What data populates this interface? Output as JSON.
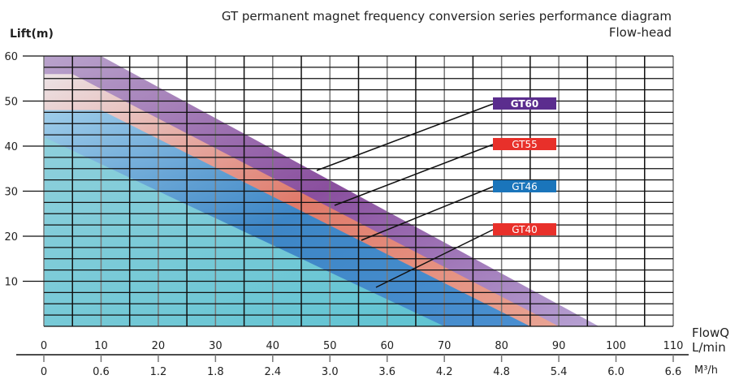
{
  "chart_data": {
    "type": "area",
    "title": "GT permanent magnet frequency conversion series performance diagram",
    "subtitle": "Flow-head",
    "ylabel": "Lift(m)",
    "xlabel": "FlowQ",
    "xunit_primary": "L/min",
    "xunit_secondary": "M³/h",
    "xlim": [
      0,
      110
    ],
    "ylim": [
      0,
      60
    ],
    "xticks": [
      "0",
      "10",
      "20",
      "30",
      "40",
      "50",
      "60",
      "70",
      "80",
      "90",
      "100",
      "110"
    ],
    "xticks_secondary": [
      "0",
      "0.6",
      "1.2",
      "1.8",
      "2.4",
      "3.0",
      "3.6",
      "4.2",
      "4.8",
      "5.4",
      "6.0",
      "6.6"
    ],
    "yticks": [
      "10",
      "20",
      "30",
      "40",
      "50",
      "60"
    ],
    "grid": true,
    "series": [
      {
        "name": "GT60",
        "color": "#5b2d8e",
        "points": [
          [
            0,
            60
          ],
          [
            10,
            60
          ],
          [
            97,
            0
          ]
        ]
      },
      {
        "name": "GT55",
        "color": "#e8302a",
        "points": [
          [
            0,
            56
          ],
          [
            5,
            56
          ],
          [
            90,
            0
          ]
        ]
      },
      {
        "name": "GT46",
        "color": "#1a75bb",
        "points": [
          [
            0,
            48
          ],
          [
            10,
            48
          ],
          [
            85,
            0
          ]
        ]
      },
      {
        "name": "GT40",
        "color": "#e8302a",
        "points": [
          [
            0,
            42
          ],
          [
            70,
            0
          ]
        ]
      }
    ]
  }
}
